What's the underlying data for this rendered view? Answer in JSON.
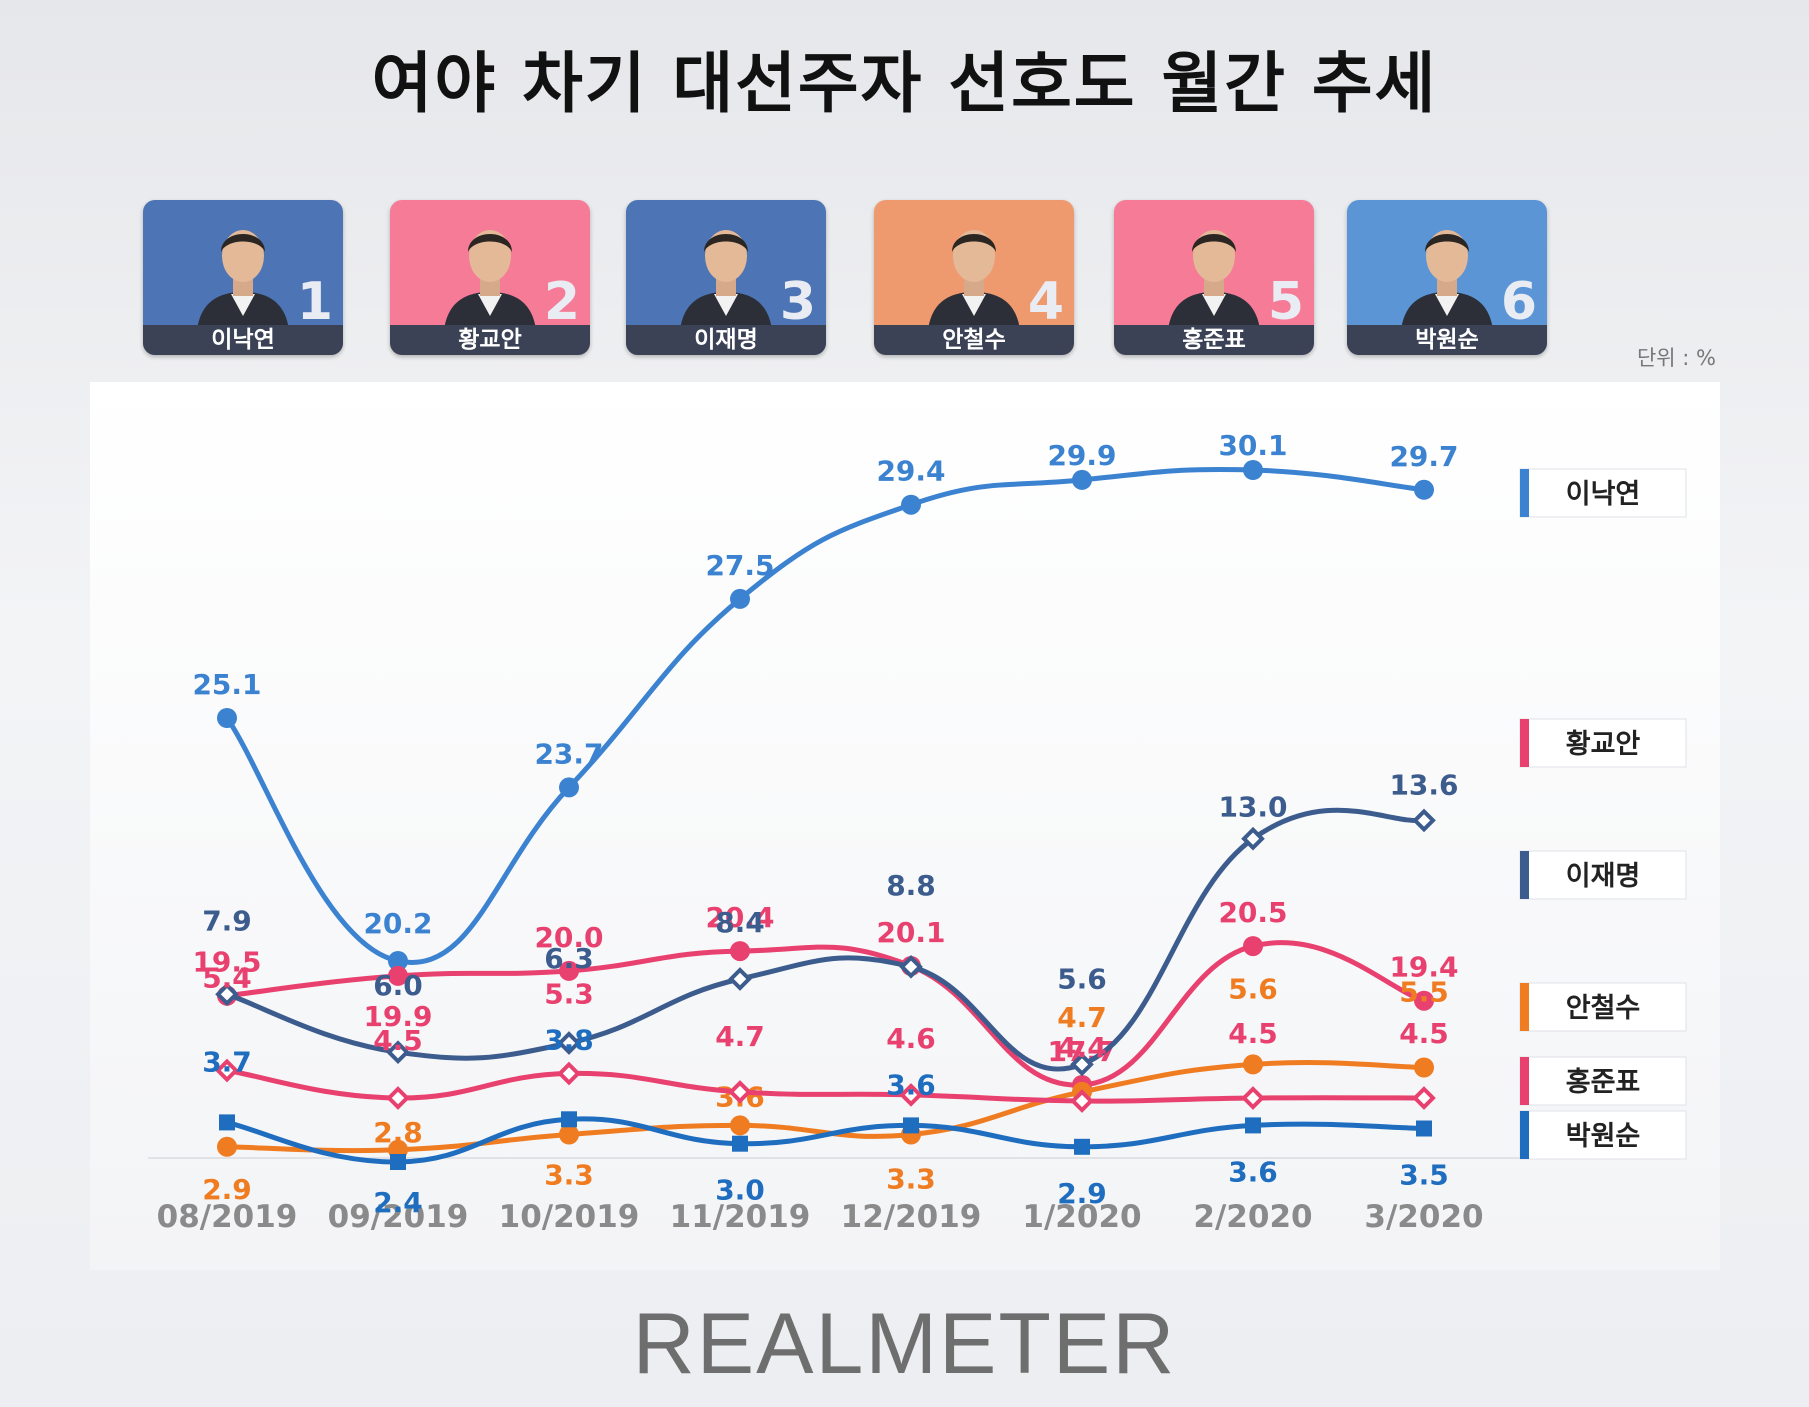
{
  "title": "여야 차기 대선주자 선호도 월간 추세",
  "unit_label": "단위 : %",
  "brand": "REALMETER",
  "candidates": [
    {
      "rank": "1",
      "name": "이낙연",
      "bg": "#4d74b4"
    },
    {
      "rank": "2",
      "name": "황교안",
      "bg": "#f57b97"
    },
    {
      "rank": "3",
      "name": "이재명",
      "bg": "#4d74b4"
    },
    {
      "rank": "4",
      "name": "안철수",
      "bg": "#ef9a6e"
    },
    {
      "rank": "5",
      "name": "홍준표",
      "bg": "#f57b97"
    },
    {
      "rank": "6",
      "name": "박원순",
      "bg": "#5b95d6"
    }
  ],
  "chart_data": {
    "type": "line",
    "categories": [
      "08/2019",
      "09/2019",
      "10/2019",
      "11/2019",
      "12/2019",
      "1/2020",
      "2/2020",
      "3/2020"
    ],
    "series": [
      {
        "name": "이낙연",
        "values": [
          25.1,
          20.2,
          23.7,
          27.5,
          29.4,
          29.9,
          30.1,
          29.7
        ],
        "color": "#3b82d0",
        "marker": "circle"
      },
      {
        "name": "황교안",
        "values": [
          19.5,
          19.9,
          20.0,
          20.4,
          20.1,
          17.7,
          20.5,
          19.4
        ],
        "color": "#e8416f",
        "marker": "circle"
      },
      {
        "name": "이재명",
        "values": [
          7.9,
          6.0,
          6.3,
          8.4,
          8.8,
          5.6,
          13.0,
          13.6
        ],
        "color": "#3d5c8e",
        "marker": "diamond"
      },
      {
        "name": "안철수",
        "values": [
          2.9,
          2.8,
          3.3,
          3.6,
          3.3,
          4.7,
          5.6,
          5.5
        ],
        "color": "#f07c22",
        "marker": "circle"
      },
      {
        "name": "홍준표",
        "values": [
          5.4,
          4.5,
          5.3,
          4.7,
          4.6,
          4.4,
          4.5,
          4.5
        ],
        "color": "#e8416f",
        "marker": "diamond"
      },
      {
        "name": "박원순",
        "values": [
          3.7,
          2.4,
          3.8,
          3.0,
          3.6,
          2.9,
          3.6,
          3.5
        ],
        "color": "#1f6dbf",
        "marker": "square"
      }
    ],
    "legend_position": "right",
    "grid": false
  }
}
